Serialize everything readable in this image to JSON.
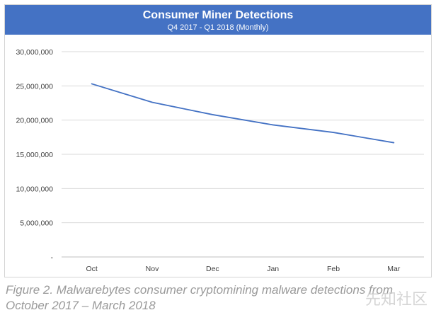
{
  "chart_data": {
    "type": "line",
    "title": "Consumer Miner Detections",
    "subtitle": "Q4 2017 - Q1 2018 (Monthly)",
    "categories": [
      "Oct",
      "Nov",
      "Dec",
      "Jan",
      "Feb",
      "Mar"
    ],
    "series": [
      {
        "values": [
          25300000,
          22600000,
          20800000,
          19300000,
          18200000,
          16700000
        ]
      }
    ],
    "ylim": [
      0,
      30000000
    ],
    "yticks": [
      0,
      5000000,
      10000000,
      15000000,
      20000000,
      25000000,
      30000000
    ],
    "ytick_labels": [
      "-",
      "5,000,000",
      "10,000,000",
      "15,000,000",
      "20,000,000",
      "25,000,000",
      "30,000,000"
    ],
    "grid": true,
    "line_color": "#4472c4"
  },
  "caption": "Figure 2. Malwarebytes consumer cryptomining malware detections from October 2017 – March 2018",
  "watermark": "先知社区"
}
